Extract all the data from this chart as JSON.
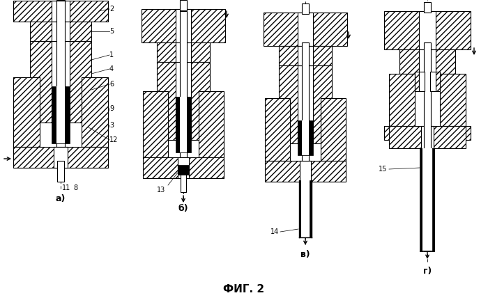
{
  "title": "ФИГ. 2",
  "sub_a": "а)",
  "sub_b": "б)",
  "sub_c": "в)",
  "sub_d": "г)",
  "bg_color": "#ffffff"
}
